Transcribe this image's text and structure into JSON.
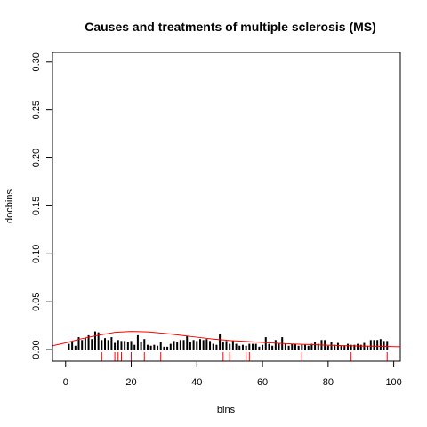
{
  "chart_data": {
    "type": "bar",
    "title": "Causes and treatments of multiple sclerosis (MS)",
    "xlabel": "bins",
    "ylabel": "docbins",
    "xlim": [
      -4,
      102
    ],
    "ylim": [
      -0.012,
      0.31
    ],
    "xticks": [
      0,
      20,
      40,
      60,
      80,
      100
    ],
    "xtick_labels": [
      "0",
      "20",
      "40",
      "60",
      "80",
      "100"
    ],
    "yticks": [
      0.0,
      0.05,
      0.1,
      0.15,
      0.2,
      0.25,
      0.3
    ],
    "ytick_labels": [
      "0.00",
      "0.05",
      "0.10",
      "0.15",
      "0.20",
      "0.25",
      "0.30"
    ],
    "bar_color": "#000000",
    "curve_color": "#ff0000",
    "rug_color": "#ff0000",
    "bins": [
      1,
      2,
      3,
      4,
      5,
      6,
      7,
      8,
      9,
      10,
      11,
      12,
      13,
      14,
      15,
      16,
      17,
      18,
      19,
      20,
      21,
      22,
      23,
      24,
      25,
      26,
      27,
      28,
      29,
      30,
      31,
      32,
      33,
      34,
      35,
      36,
      37,
      38,
      39,
      40,
      41,
      42,
      43,
      44,
      45,
      46,
      47,
      48,
      49,
      50,
      51,
      52,
      53,
      54,
      55,
      56,
      57,
      58,
      59,
      60,
      61,
      62,
      63,
      64,
      65,
      66,
      67,
      68,
      69,
      70,
      71,
      72,
      73,
      74,
      75,
      76,
      77,
      78,
      79,
      80,
      81,
      82,
      83,
      84,
      85,
      86,
      87,
      88,
      89,
      90,
      91,
      92,
      93,
      94,
      95,
      96,
      97,
      98
    ],
    "values": [
      0.006,
      0.008,
      0.004,
      0.013,
      0.01,
      0.012,
      0.015,
      0.011,
      0.019,
      0.018,
      0.01,
      0.012,
      0.01,
      0.013,
      0.007,
      0.01,
      0.009,
      0.009,
      0.008,
      0.009,
      0.005,
      0.015,
      0.008,
      0.011,
      0.005,
      0.004,
      0.005,
      0.004,
      0.008,
      0.003,
      0.003,
      0.006,
      0.009,
      0.008,
      0.01,
      0.01,
      0.014,
      0.008,
      0.01,
      0.009,
      0.011,
      0.01,
      0.011,
      0.009,
      0.006,
      0.005,
      0.016,
      0.008,
      0.009,
      0.006,
      0.009,
      0.006,
      0.004,
      0.005,
      0.004,
      0.006,
      0.006,
      0.006,
      0.003,
      0.005,
      0.013,
      0.006,
      0.004,
      0.01,
      0.006,
      0.013,
      0.006,
      0.004,
      0.006,
      0.006,
      0.004,
      0.005,
      0.005,
      0.004,
      0.006,
      0.008,
      0.006,
      0.01,
      0.01,
      0.004,
      0.008,
      0.005,
      0.007,
      0.004,
      0.004,
      0.006,
      0.005,
      0.005,
      0.006,
      0.005,
      0.007,
      0.004,
      0.01,
      0.01,
      0.01,
      0.011,
      0.009,
      0.009
    ],
    "density_curve": {
      "x": [
        -4,
        0,
        5,
        10,
        15,
        20,
        25,
        30,
        35,
        40,
        45,
        50,
        55,
        60,
        65,
        70,
        75,
        80,
        85,
        90,
        95,
        102
      ],
      "y": [
        0.004,
        0.007,
        0.0115,
        0.015,
        0.018,
        0.019,
        0.0185,
        0.017,
        0.015,
        0.013,
        0.011,
        0.0095,
        0.0085,
        0.0075,
        0.0065,
        0.0058,
        0.0052,
        0.0046,
        0.0041,
        0.0037,
        0.0034,
        0.003
      ]
    },
    "rug": [
      11,
      15,
      16,
      17,
      20,
      24,
      29,
      48,
      50,
      55,
      56,
      72,
      87,
      98
    ]
  }
}
